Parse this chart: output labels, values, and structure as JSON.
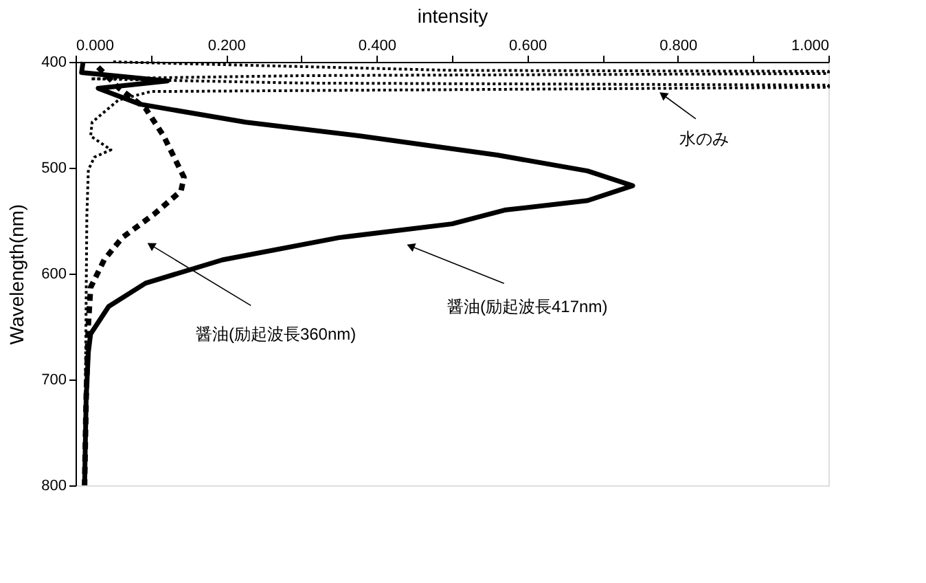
{
  "chart_data": {
    "type": "line",
    "xlabel": "intensity",
    "ylabel": "Wavelength(nm)",
    "xlim": [
      0,
      1.0
    ],
    "xticks": [
      {
        "value": 0,
        "label": "0.000"
      },
      {
        "value": 0.1,
        "label": null
      },
      {
        "value": 0.2,
        "label": "0.200"
      },
      {
        "value": 0.3,
        "label": null
      },
      {
        "value": 0.4,
        "label": "0.400"
      },
      {
        "value": 0.5,
        "label": null
      },
      {
        "value": 0.6,
        "label": "0.600"
      },
      {
        "value": 0.7,
        "label": null
      },
      {
        "value": 0.8,
        "label": "0.800"
      },
      {
        "value": 0.9,
        "label": null
      },
      {
        "value": 1.0,
        "label": "1.000"
      }
    ],
    "ylim": [
      800,
      400
    ],
    "yticks": [
      400,
      500,
      600,
      700,
      800
    ],
    "grid": false,
    "series": [
      {
        "color": "#000000",
        "line_style": "solid",
        "x": [
          0.01,
          0.008,
          0.122,
          0.03,
          0.086,
          0.226,
          0.378,
          0.56,
          0.68,
          0.74,
          0.68,
          0.57,
          0.5,
          0.35,
          0.195,
          0.093,
          0.044,
          0.02,
          0.017,
          0.014,
          0.012
        ],
        "values": [
          400,
          410,
          418,
          425,
          440,
          457,
          470,
          488,
          503,
          517,
          531,
          540,
          553,
          566,
          587,
          609,
          631,
          657,
          674,
          720,
          800
        ]
      },
      {
        "color": "#000000",
        "line_style": "dashed",
        "x": [
          0.03,
          0.058,
          0.093,
          0.117,
          0.144,
          0.14,
          0.104,
          0.062,
          0.038,
          0.02,
          0.017,
          0.014,
          0.012
        ],
        "values": [
          405,
          425,
          444,
          470,
          509,
          522,
          544,
          566,
          587,
          613,
          648,
          720,
          800
        ]
      },
      {
        "color": "#000000",
        "line_style": "dotted",
        "x": [
          0.05,
          0.5,
          1.0,
          1.0,
          0.3,
          0.02,
          0.3,
          1.0,
          1.0,
          0.1,
          0.057,
          0.022,
          0.02,
          0.047,
          0.025,
          0.017,
          0.015,
          0.012
        ],
        "values": [
          400,
          408,
          409,
          411,
          413,
          416,
          420,
          422,
          424,
          428,
          436,
          457,
          470,
          483,
          490,
          502,
          545,
          800
        ]
      }
    ],
    "annotations": [
      {
        "text": "水のみ",
        "x": 0.78,
        "y": 431
      },
      {
        "text": "醤油(励起波長360nm)",
        "x": 0.1,
        "y": 573
      },
      {
        "text": "醤油(励起波長417nm)",
        "x": 0.445,
        "y": 574
      }
    ]
  }
}
